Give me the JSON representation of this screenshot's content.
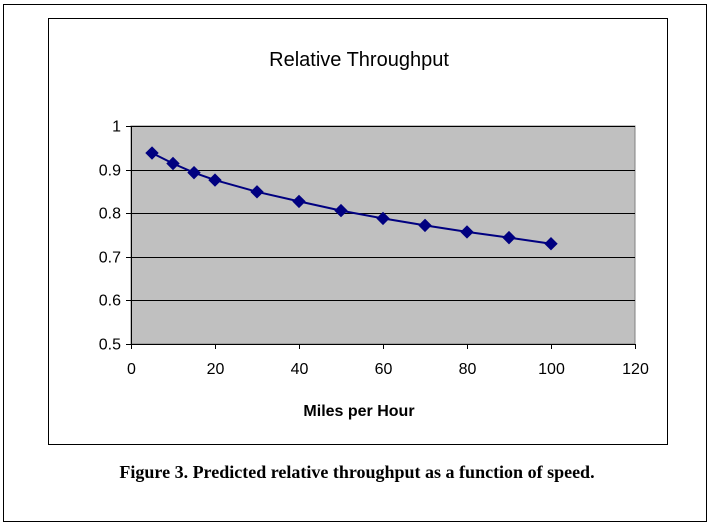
{
  "chart_data": {
    "type": "line",
    "title": "Relative Throughput",
    "xlabel": "Miles per Hour",
    "ylabel": "",
    "xlim": [
      0,
      120
    ],
    "ylim": [
      0.5,
      1
    ],
    "xticks": [
      0,
      20,
      40,
      60,
      80,
      100,
      120
    ],
    "yticks": [
      0.5,
      0.6,
      0.7,
      0.8,
      0.9,
      1
    ],
    "ytick_labels": [
      "0.5",
      "0.6",
      "0.7",
      "0.8",
      "0.9",
      "1"
    ],
    "grid": "horizontal",
    "legend": "none",
    "plot_background": "#C0C0C0",
    "series": [
      {
        "color": "#000080",
        "marker": "diamond",
        "x": [
          5,
          10,
          15,
          20,
          30,
          40,
          50,
          60,
          70,
          80,
          90,
          100
        ],
        "y": [
          0.938,
          0.914,
          0.893,
          0.876,
          0.849,
          0.827,
          0.806,
          0.788,
          0.772,
          0.757,
          0.744,
          0.73
        ]
      }
    ]
  },
  "caption": "Figure 3. Predicted relative throughput as a function of speed."
}
